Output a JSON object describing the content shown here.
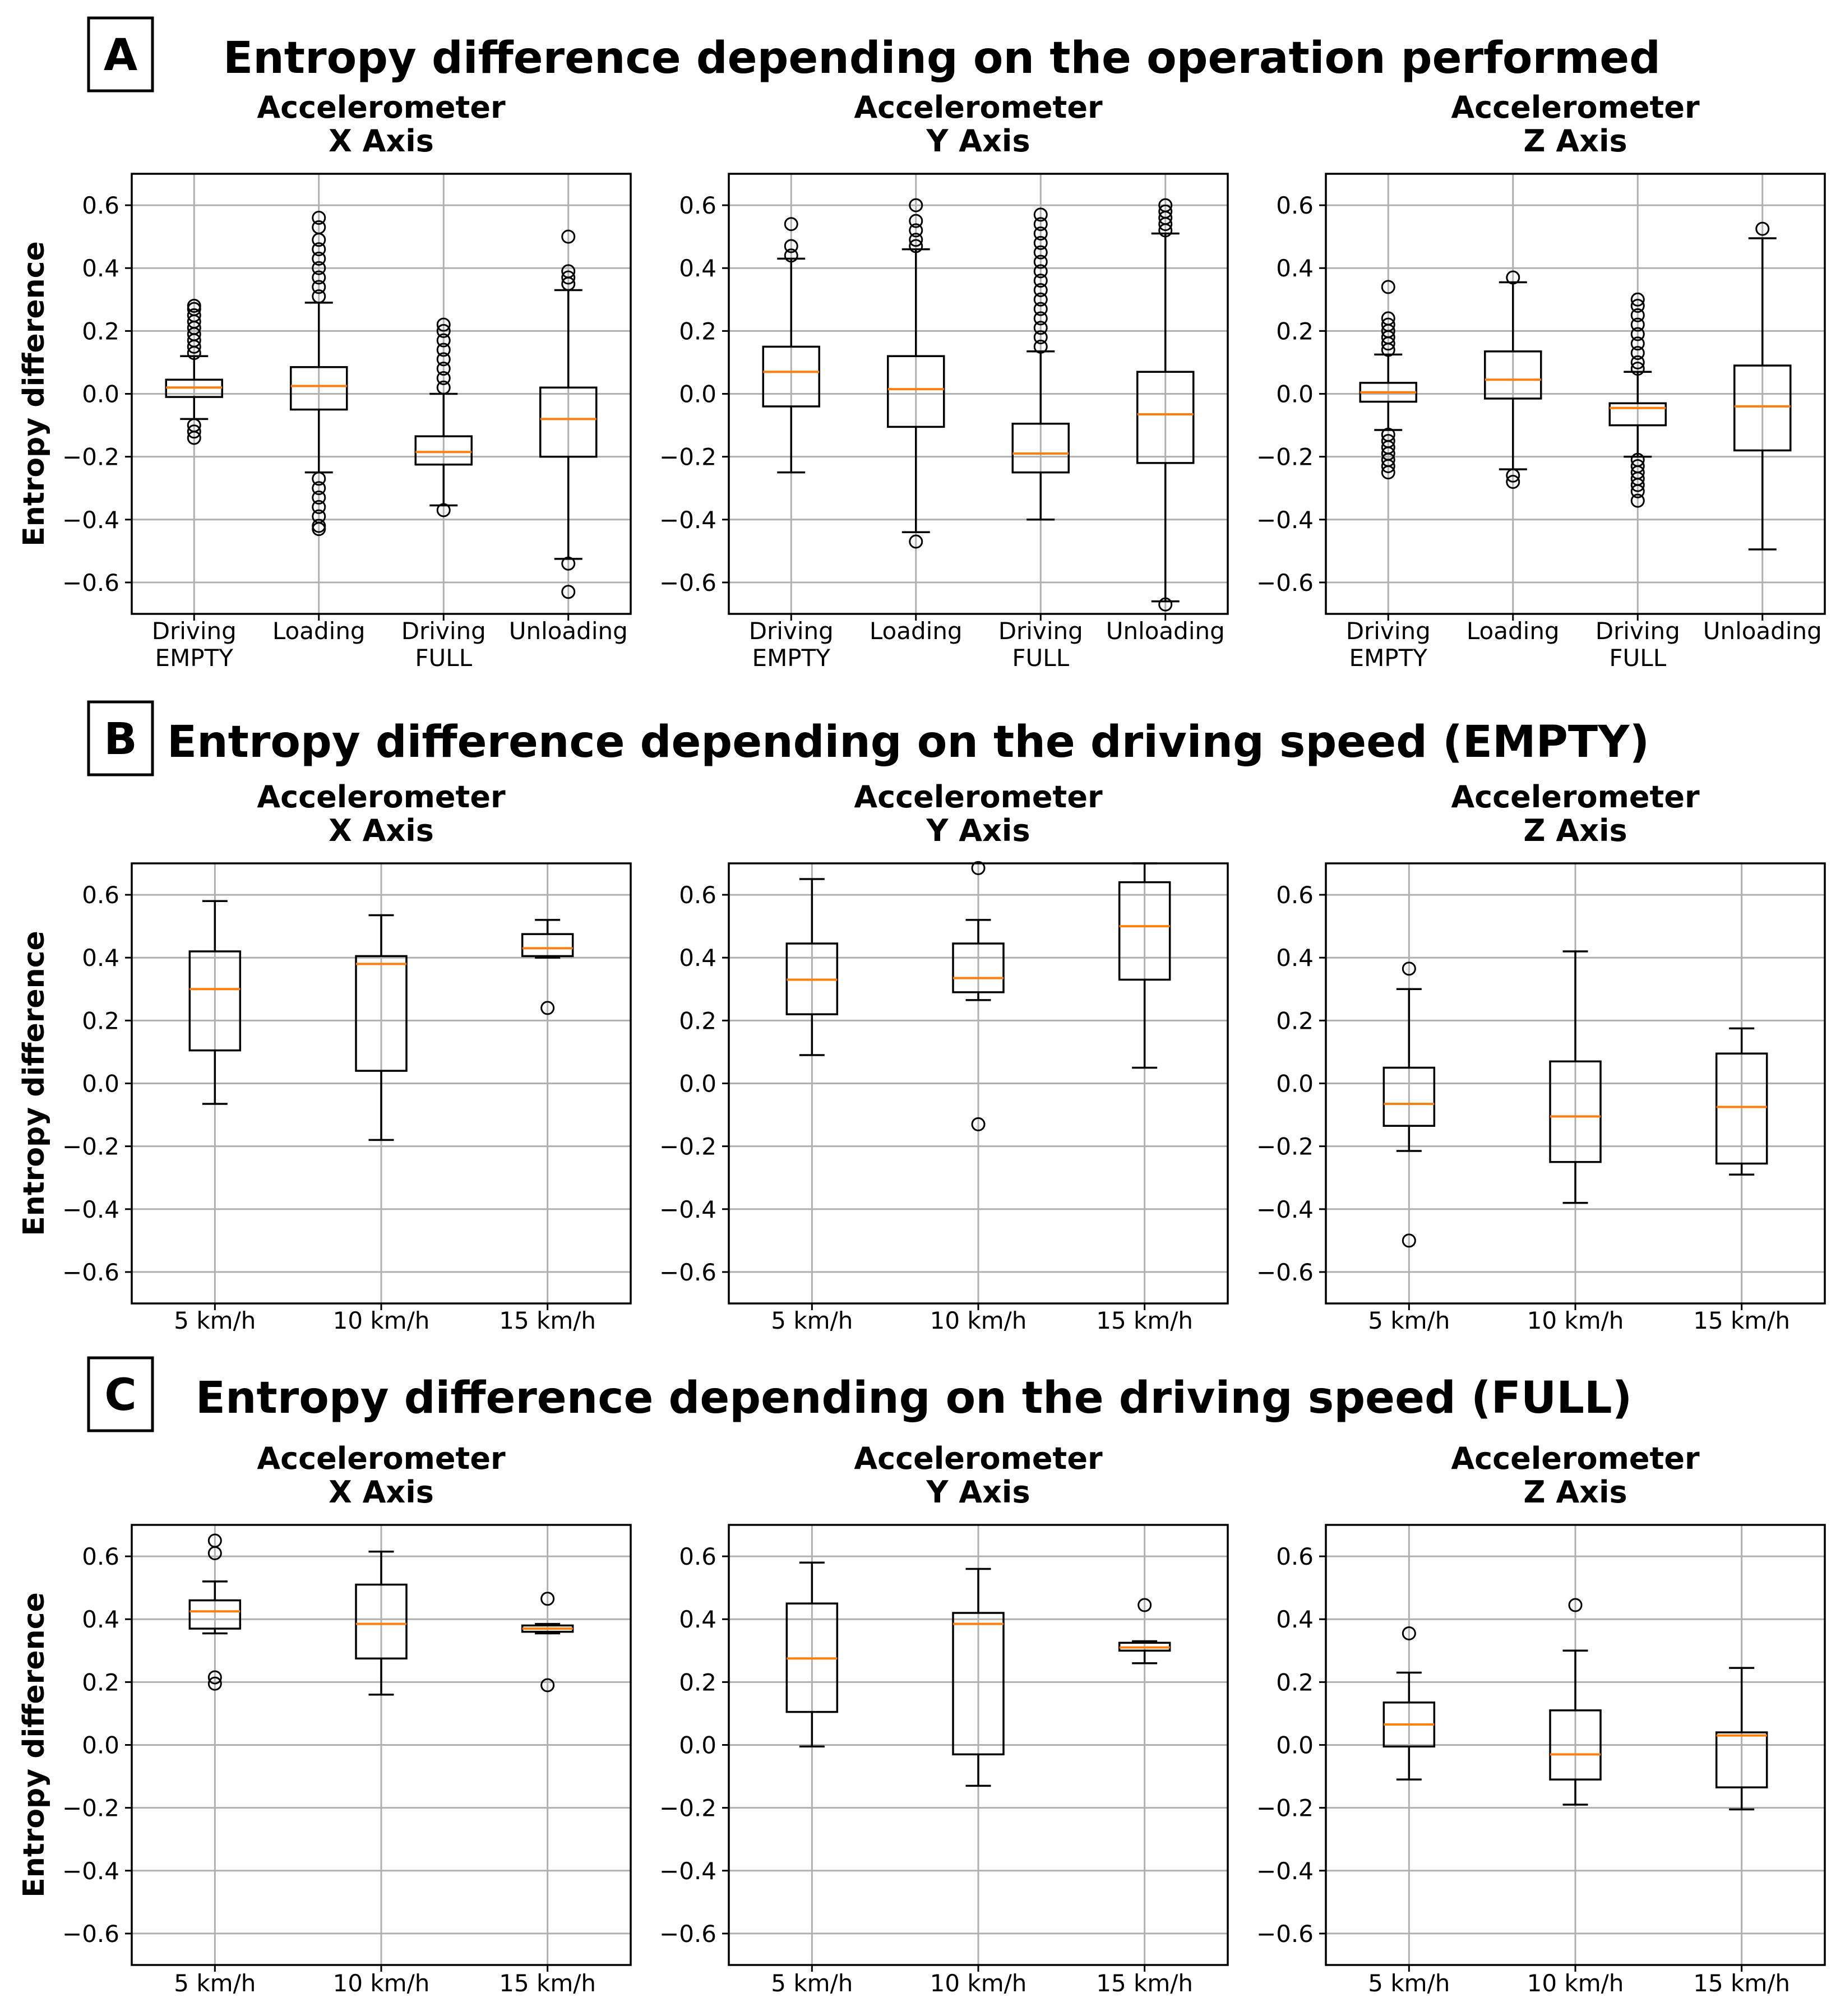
{
  "panels": [
    {
      "letter": "A",
      "title": "Entropy difference depending on the operation performed"
    },
    {
      "letter": "B",
      "title": "Entropy difference depending on the driving speed (EMPTY)"
    },
    {
      "letter": "C",
      "title": "Entropy difference depending on the driving speed (FULL)"
    }
  ],
  "colors": {
    "median": "#ff7f0e",
    "box": "#000000",
    "grid": "#b0b0b0"
  },
  "chart_data": [
    {
      "type": "box",
      "panel": "A",
      "title_line1": "Accelerometer",
      "title_line2": "X Axis",
      "ylabel": "Entropy difference",
      "ylim": [
        -0.7,
        0.7
      ],
      "yticks": [
        0.6,
        0.4,
        0.2,
        0.0,
        -0.2,
        -0.4,
        -0.6
      ],
      "ytick_labels": [
        "0.6",
        "0.4",
        "0.2",
        "0.0",
        "−0.2",
        "−0.4",
        "−0.6"
      ],
      "categories": [
        [
          "Driving",
          "EMPTY"
        ],
        [
          "Loading"
        ],
        [
          "Driving",
          "FULL"
        ],
        [
          "Unloading"
        ]
      ],
      "boxes": [
        {
          "whislo": -0.08,
          "q1": -0.01,
          "med": 0.02,
          "q3": 0.045,
          "whishi": 0.12,
          "fliers": [
            0.13,
            0.15,
            0.17,
            0.19,
            0.21,
            0.23,
            0.25,
            0.27,
            0.28,
            -0.1,
            -0.12,
            -0.14
          ]
        },
        {
          "whislo": -0.25,
          "q1": -0.05,
          "med": 0.025,
          "q3": 0.085,
          "whishi": 0.29,
          "fliers": [
            0.31,
            0.34,
            0.37,
            0.4,
            0.43,
            0.46,
            0.49,
            0.53,
            0.56,
            -0.27,
            -0.3,
            -0.33,
            -0.36,
            -0.39,
            -0.42,
            -0.43
          ]
        },
        {
          "whislo": -0.355,
          "q1": -0.225,
          "med": -0.185,
          "q3": -0.135,
          "whishi": 0.0,
          "fliers": [
            0.02,
            0.05,
            0.08,
            0.11,
            0.14,
            0.17,
            0.2,
            0.22,
            -0.37
          ]
        },
        {
          "whislo": -0.525,
          "q1": -0.2,
          "med": -0.08,
          "q3": 0.02,
          "whishi": 0.33,
          "fliers": [
            0.35,
            0.37,
            0.39,
            0.5,
            -0.54,
            -0.63
          ]
        }
      ]
    },
    {
      "type": "box",
      "panel": "A",
      "title_line1": "Accelerometer",
      "title_line2": "Y Axis",
      "ylabel": "",
      "ylim": [
        -0.7,
        0.7
      ],
      "yticks": [
        0.6,
        0.4,
        0.2,
        0.0,
        -0.2,
        -0.4,
        -0.6
      ],
      "ytick_labels": [
        "0.6",
        "0.4",
        "0.2",
        "0.0",
        "−0.2",
        "−0.4",
        "−0.6"
      ],
      "categories": [
        [
          "Driving",
          "EMPTY"
        ],
        [
          "Loading"
        ],
        [
          "Driving",
          "FULL"
        ],
        [
          "Unloading"
        ]
      ],
      "boxes": [
        {
          "whislo": -0.25,
          "q1": -0.04,
          "med": 0.07,
          "q3": 0.15,
          "whishi": 0.43,
          "fliers": [
            0.44,
            0.47,
            0.54
          ]
        },
        {
          "whislo": -0.44,
          "q1": -0.105,
          "med": 0.015,
          "q3": 0.12,
          "whishi": 0.46,
          "fliers": [
            0.47,
            0.49,
            0.52,
            0.55,
            0.6,
            -0.47
          ]
        },
        {
          "whislo": -0.4,
          "q1": -0.25,
          "med": -0.19,
          "q3": -0.095,
          "whishi": 0.135,
          "fliers": [
            0.15,
            0.18,
            0.21,
            0.24,
            0.27,
            0.3,
            0.33,
            0.36,
            0.39,
            0.42,
            0.45,
            0.48,
            0.51,
            0.54,
            0.57
          ]
        },
        {
          "whislo": -0.66,
          "q1": -0.22,
          "med": -0.065,
          "q3": 0.07,
          "whishi": 0.51,
          "fliers": [
            0.52,
            0.54,
            0.56,
            0.58,
            0.6,
            -0.67
          ]
        }
      ]
    },
    {
      "type": "box",
      "panel": "A",
      "title_line1": "Accelerometer",
      "title_line2": "Z Axis",
      "ylabel": "",
      "ylim": [
        -0.7,
        0.7
      ],
      "yticks": [
        0.6,
        0.4,
        0.2,
        0.0,
        -0.2,
        -0.4,
        -0.6
      ],
      "ytick_labels": [
        "0.6",
        "0.4",
        "0.2",
        "0.0",
        "−0.2",
        "−0.4",
        "−0.6"
      ],
      "categories": [
        [
          "Driving",
          "EMPTY"
        ],
        [
          "Loading"
        ],
        [
          "Driving",
          "FULL"
        ],
        [
          "Unloading"
        ]
      ],
      "boxes": [
        {
          "whislo": -0.115,
          "q1": -0.025,
          "med": 0.005,
          "q3": 0.035,
          "whishi": 0.125,
          "fliers": [
            0.14,
            0.16,
            0.18,
            0.2,
            0.22,
            0.24,
            0.34,
            -0.13,
            -0.15,
            -0.17,
            -0.19,
            -0.21,
            -0.23,
            -0.25
          ]
        },
        {
          "whislo": -0.24,
          "q1": -0.015,
          "med": 0.045,
          "q3": 0.135,
          "whishi": 0.355,
          "fliers": [
            0.37,
            -0.26,
            -0.28
          ]
        },
        {
          "whislo": -0.2,
          "q1": -0.1,
          "med": -0.045,
          "q3": -0.03,
          "whishi": 0.07,
          "fliers": [
            0.08,
            0.1,
            0.13,
            0.16,
            0.19,
            0.22,
            0.25,
            0.28,
            0.3,
            -0.21,
            -0.23,
            -0.25,
            -0.27,
            -0.29,
            -0.31,
            -0.34
          ]
        },
        {
          "whislo": -0.495,
          "q1": -0.18,
          "med": -0.04,
          "q3": 0.09,
          "whishi": 0.495,
          "fliers": [
            0.525
          ]
        }
      ]
    },
    {
      "type": "box",
      "panel": "B",
      "title_line1": "Accelerometer",
      "title_line2": "X Axis",
      "ylabel": "Entropy difference",
      "ylim": [
        -0.7,
        0.7
      ],
      "yticks": [
        0.6,
        0.4,
        0.2,
        0.0,
        -0.2,
        -0.4,
        -0.6
      ],
      "ytick_labels": [
        "0.6",
        "0.4",
        "0.2",
        "0.0",
        "−0.2",
        "−0.4",
        "−0.6"
      ],
      "categories": [
        [
          "5 km/h"
        ],
        [
          "10 km/h"
        ],
        [
          "15 km/h"
        ]
      ],
      "boxes": [
        {
          "whislo": -0.065,
          "q1": 0.105,
          "med": 0.3,
          "q3": 0.42,
          "whishi": 0.58,
          "fliers": []
        },
        {
          "whislo": -0.18,
          "q1": 0.04,
          "med": 0.38,
          "q3": 0.405,
          "whishi": 0.535,
          "fliers": []
        },
        {
          "whislo": 0.4,
          "q1": 0.405,
          "med": 0.43,
          "q3": 0.475,
          "whishi": 0.52,
          "fliers": [
            0.24
          ]
        }
      ]
    },
    {
      "type": "box",
      "panel": "B",
      "title_line1": "Accelerometer",
      "title_line2": "Y Axis",
      "ylabel": "",
      "ylim": [
        -0.7,
        0.7
      ],
      "yticks": [
        0.6,
        0.4,
        0.2,
        0.0,
        -0.2,
        -0.4,
        -0.6
      ],
      "ytick_labels": [
        "0.6",
        "0.4",
        "0.2",
        "0.0",
        "−0.2",
        "−0.4",
        "−0.6"
      ],
      "categories": [
        [
          "5 km/h"
        ],
        [
          "10 km/h"
        ],
        [
          "15 km/h"
        ]
      ],
      "boxes": [
        {
          "whislo": 0.09,
          "q1": 0.22,
          "med": 0.33,
          "q3": 0.445,
          "whishi": 0.65,
          "fliers": []
        },
        {
          "whislo": 0.265,
          "q1": 0.29,
          "med": 0.335,
          "q3": 0.445,
          "whishi": 0.52,
          "fliers": [
            0.685,
            -0.13
          ]
        },
        {
          "whislo": 0.05,
          "q1": 0.33,
          "med": 0.5,
          "q3": 0.64,
          "whishi": 0.7,
          "fliers": []
        }
      ]
    },
    {
      "type": "box",
      "panel": "B",
      "title_line1": "Accelerometer",
      "title_line2": "Z Axis",
      "ylabel": "",
      "ylim": [
        -0.7,
        0.7
      ],
      "yticks": [
        0.6,
        0.4,
        0.2,
        0.0,
        -0.2,
        -0.4,
        -0.6
      ],
      "ytick_labels": [
        "0.6",
        "0.4",
        "0.2",
        "0.0",
        "−0.2",
        "−0.4",
        "−0.6"
      ],
      "categories": [
        [
          "5 km/h"
        ],
        [
          "10 km/h"
        ],
        [
          "15 km/h"
        ]
      ],
      "boxes": [
        {
          "whislo": -0.215,
          "q1": -0.135,
          "med": -0.065,
          "q3": 0.05,
          "whishi": 0.3,
          "fliers": [
            0.365,
            -0.5
          ]
        },
        {
          "whislo": -0.38,
          "q1": -0.25,
          "med": -0.105,
          "q3": 0.07,
          "whishi": 0.42,
          "fliers": []
        },
        {
          "whislo": -0.29,
          "q1": -0.255,
          "med": -0.075,
          "q3": 0.095,
          "whishi": 0.175,
          "fliers": []
        }
      ]
    },
    {
      "type": "box",
      "panel": "C",
      "title_line1": "Accelerometer",
      "title_line2": "X Axis",
      "ylabel": "Entropy difference",
      "ylim": [
        -0.7,
        0.7
      ],
      "yticks": [
        0.6,
        0.4,
        0.2,
        0.0,
        -0.2,
        -0.4,
        -0.6
      ],
      "ytick_labels": [
        "0.6",
        "0.4",
        "0.2",
        "0.0",
        "−0.2",
        "−0.4",
        "−0.6"
      ],
      "categories": [
        [
          "5 km/h"
        ],
        [
          "10 km/h"
        ],
        [
          "15 km/h"
        ]
      ],
      "boxes": [
        {
          "whislo": 0.355,
          "q1": 0.37,
          "med": 0.425,
          "q3": 0.46,
          "whishi": 0.52,
          "fliers": [
            0.65,
            0.61,
            0.215,
            0.195
          ]
        },
        {
          "whislo": 0.16,
          "q1": 0.275,
          "med": 0.385,
          "q3": 0.51,
          "whishi": 0.615,
          "fliers": []
        },
        {
          "whislo": 0.355,
          "q1": 0.36,
          "med": 0.37,
          "q3": 0.38,
          "whishi": 0.385,
          "fliers": [
            0.465,
            0.19
          ]
        }
      ]
    },
    {
      "type": "box",
      "panel": "C",
      "title_line1": "Accelerometer",
      "title_line2": "Y Axis",
      "ylabel": "",
      "ylim": [
        -0.7,
        0.7
      ],
      "yticks": [
        0.6,
        0.4,
        0.2,
        0.0,
        -0.2,
        -0.4,
        -0.6
      ],
      "ytick_labels": [
        "0.6",
        "0.4",
        "0.2",
        "0.0",
        "−0.2",
        "−0.4",
        "−0.6"
      ],
      "categories": [
        [
          "5 km/h"
        ],
        [
          "10 km/h"
        ],
        [
          "15 km/h"
        ]
      ],
      "boxes": [
        {
          "whislo": -0.005,
          "q1": 0.105,
          "med": 0.275,
          "q3": 0.45,
          "whishi": 0.58,
          "fliers": []
        },
        {
          "whislo": -0.13,
          "q1": -0.03,
          "med": 0.385,
          "q3": 0.42,
          "whishi": 0.56,
          "fliers": []
        },
        {
          "whislo": 0.26,
          "q1": 0.3,
          "med": 0.31,
          "q3": 0.325,
          "whishi": 0.33,
          "fliers": [
            0.445
          ]
        }
      ]
    },
    {
      "type": "box",
      "panel": "C",
      "title_line1": "Accelerometer",
      "title_line2": "Z Axis",
      "ylabel": "",
      "ylim": [
        -0.7,
        0.7
      ],
      "yticks": [
        0.6,
        0.4,
        0.2,
        0.0,
        -0.2,
        -0.4,
        -0.6
      ],
      "ytick_labels": [
        "0.6",
        "0.4",
        "0.2",
        "0.0",
        "−0.2",
        "−0.4",
        "−0.6"
      ],
      "categories": [
        [
          "5 km/h"
        ],
        [
          "10 km/h"
        ],
        [
          "15 km/h"
        ]
      ],
      "boxes": [
        {
          "whislo": -0.11,
          "q1": -0.005,
          "med": 0.065,
          "q3": 0.135,
          "whishi": 0.23,
          "fliers": [
            0.355
          ]
        },
        {
          "whislo": -0.19,
          "q1": -0.11,
          "med": -0.03,
          "q3": 0.11,
          "whishi": 0.3,
          "fliers": [
            0.445
          ]
        },
        {
          "whislo": -0.205,
          "q1": -0.135,
          "med": 0.03,
          "q3": 0.04,
          "whishi": 0.245,
          "fliers": []
        }
      ]
    }
  ]
}
